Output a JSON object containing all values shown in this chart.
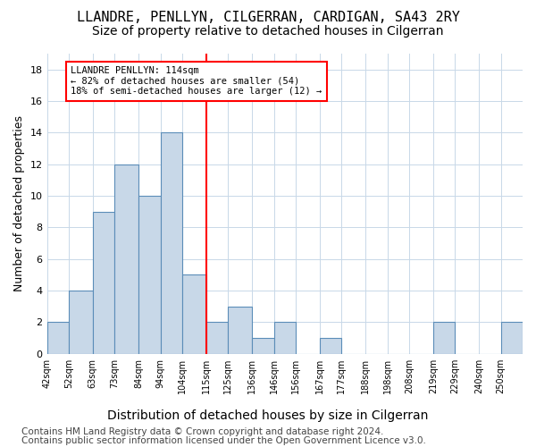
{
  "title1": "LLANDRE, PENLLYN, CILGERRAN, CARDIGAN, SA43 2RY",
  "title2": "Size of property relative to detached houses in Cilgerran",
  "xlabel": "Distribution of detached houses by size in Cilgerran",
  "ylabel": "Number of detached properties",
  "footer1": "Contains HM Land Registry data © Crown copyright and database right 2024.",
  "footer2": "Contains public sector information licensed under the Open Government Licence v3.0.",
  "bin_labels": [
    "42sqm",
    "52sqm",
    "63sqm",
    "73sqm",
    "84sqm",
    "94sqm",
    "104sqm",
    "115sqm",
    "125sqm",
    "136sqm",
    "146sqm",
    "156sqm",
    "167sqm",
    "177sqm",
    "188sqm",
    "198sqm",
    "208sqm",
    "219sqm",
    "229sqm",
    "240sqm",
    "250sqm"
  ],
  "bin_edges": [
    42,
    52,
    63,
    73,
    84,
    94,
    104,
    115,
    125,
    136,
    146,
    156,
    167,
    177,
    188,
    198,
    208,
    219,
    229,
    240,
    250,
    260
  ],
  "bar_heights": [
    2,
    4,
    9,
    12,
    10,
    14,
    5,
    2,
    3,
    1,
    2,
    0,
    1,
    0,
    0,
    0,
    0,
    2,
    0,
    0,
    2
  ],
  "bar_color": "#c8d8e8",
  "bar_edge_color": "#5b8db8",
  "grid_color": "#c8d8e8",
  "property_line_x": 115,
  "annotation_text": "LLANDRE PENLLYN: 114sqm\n← 82% of detached houses are smaller (54)\n18% of semi-detached houses are larger (12) →",
  "annotation_box_color": "white",
  "annotation_box_edge": "red",
  "vline_color": "red",
  "ylim": [
    0,
    19
  ],
  "yticks": [
    0,
    2,
    4,
    6,
    8,
    10,
    12,
    14,
    16,
    18
  ],
  "bg_color": "white",
  "title1_fontsize": 11,
  "title2_fontsize": 10,
  "xlabel_fontsize": 10,
  "ylabel_fontsize": 9,
  "footer_fontsize": 7.5
}
